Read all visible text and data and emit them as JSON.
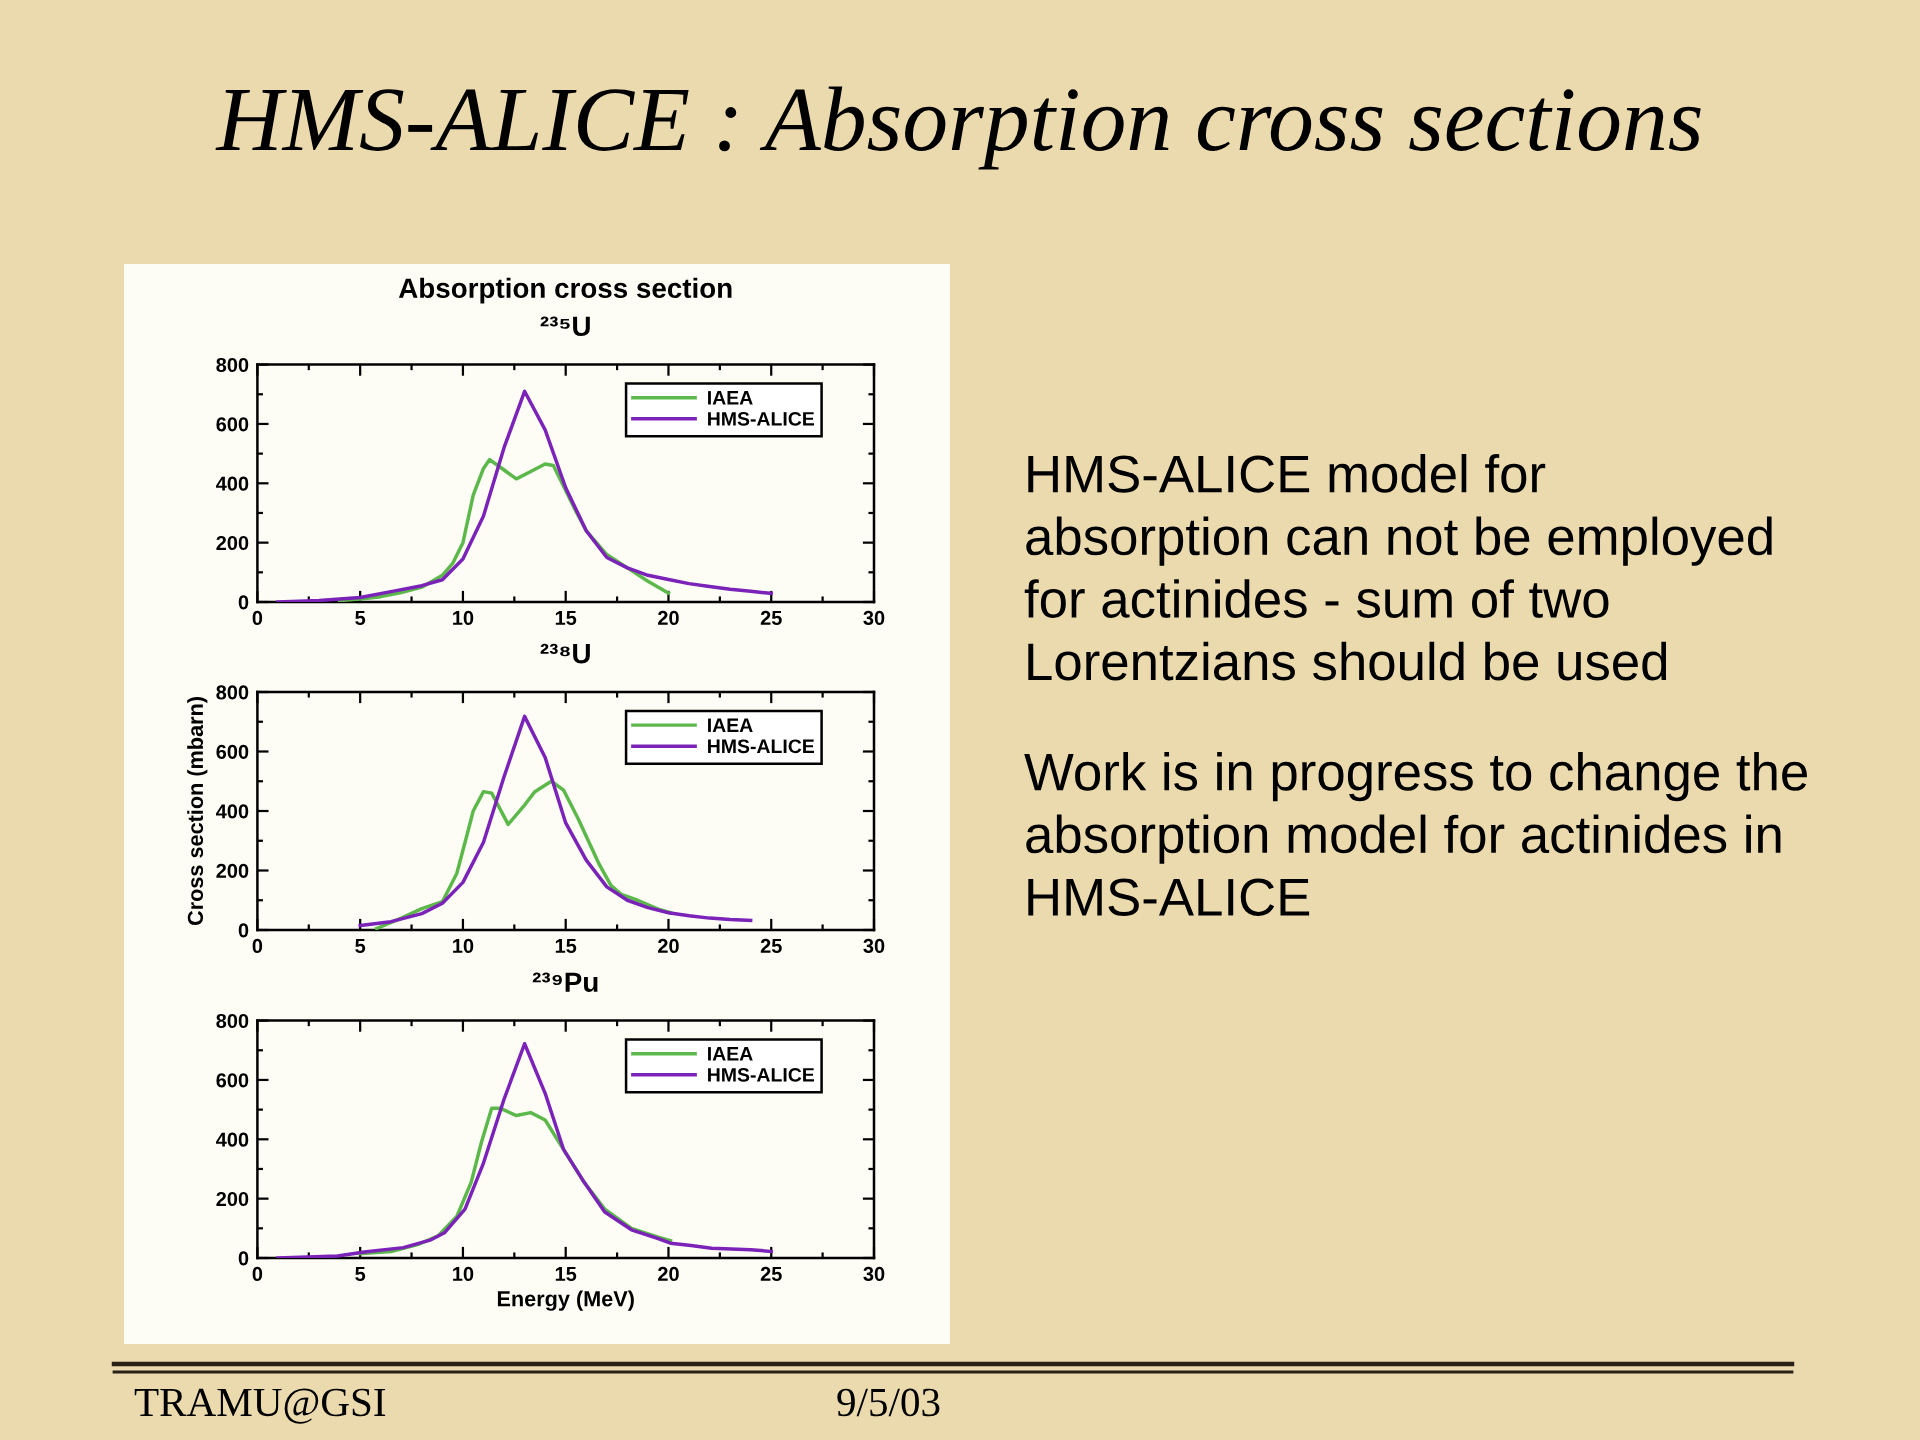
{
  "chart_data": [
    {
      "type": "line",
      "title": "Absorption cross section",
      "subtitle": "²³⁵U",
      "xlim": [
        0,
        30
      ],
      "ylim": [
        0,
        800
      ],
      "xticks": [
        0,
        {
          "value": 2.5,
          "label": null
        },
        5,
        {
          "value": 7.5,
          "label": null
        },
        10,
        {
          "value": 12.5,
          "label": null
        },
        15,
        {
          "value": 17.5,
          "label": null
        },
        20,
        {
          "value": 22.5,
          "label": null
        },
        25,
        {
          "value": 27.5,
          "label": null
        },
        30
      ],
      "yticks": [
        0,
        {
          "value": 100,
          "label": null
        },
        200,
        {
          "value": 300,
          "label": null
        },
        400,
        {
          "value": 500,
          "label": null
        },
        600,
        {
          "value": 700,
          "label": null
        },
        800
      ],
      "legend": "top right",
      "series": [
        {
          "name": "IAEA",
          "color": "#5cb84a",
          "x": [
            4,
            5,
            6,
            7,
            8,
            9,
            9.5,
            10,
            10.5,
            11,
            11.3,
            11.8,
            12.6,
            13.3,
            14,
            14.4,
            14.9,
            15.5,
            16,
            17,
            18,
            19,
            20
          ],
          "values": [
            5,
            10,
            18,
            32,
            50,
            90,
            130,
            200,
            360,
            450,
            480,
            455,
            415,
            440,
            465,
            460,
            390,
            305,
            240,
            160,
            115,
            70,
            30
          ]
        },
        {
          "name": "HMS-ALICE",
          "color": "#7b22b8",
          "x": [
            1,
            3,
            5,
            6.5,
            8,
            9,
            10,
            11,
            12,
            13,
            14,
            15,
            16,
            17,
            18,
            19,
            20,
            21,
            22,
            23,
            24,
            25
          ],
          "values": [
            0,
            5,
            15,
            35,
            55,
            75,
            145,
            290,
            520,
            710,
            580,
            385,
            240,
            150,
            115,
            90,
            76,
            62,
            52,
            43,
            36,
            29
          ]
        }
      ]
    },
    {
      "type": "line",
      "title": "²³⁸U",
      "ylabel": "Cross section (mbarn)",
      "xlim": [
        0,
        30
      ],
      "ylim": [
        0,
        800
      ],
      "xticks": [
        0,
        {
          "value": 2.5,
          "label": null
        },
        5,
        {
          "value": 7.5,
          "label": null
        },
        10,
        {
          "value": 12.5,
          "label": null
        },
        15,
        {
          "value": 17.5,
          "label": null
        },
        20,
        {
          "value": 22.5,
          "label": null
        },
        25,
        {
          "value": 27.5,
          "label": null
        },
        30
      ],
      "yticks": [
        0,
        {
          "value": 100,
          "label": null
        },
        200,
        {
          "value": 300,
          "label": null
        },
        400,
        {
          "value": 500,
          "label": null
        },
        600,
        {
          "value": 700,
          "label": null
        },
        800
      ],
      "legend": "top right",
      "series": [
        {
          "name": "IAEA",
          "color": "#5cb84a",
          "x": [
            5.8,
            7,
            8,
            9,
            9.7,
            10.2,
            10.5,
            11,
            11.4,
            12.2,
            13,
            13.5,
            14.3,
            14.9,
            15.6,
            16.1,
            16.6,
            17.2,
            17.7,
            18.5,
            19.5,
            20.1
          ],
          "values": [
            5,
            40,
            72,
            95,
            190,
            320,
            400,
            465,
            460,
            355,
            420,
            465,
            500,
            470,
            375,
            300,
            225,
            150,
            120,
            100,
            70,
            58
          ]
        },
        {
          "name": "HMS-ALICE",
          "color": "#7b22b8",
          "x": [
            5,
            6.5,
            8,
            9,
            10,
            11,
            12,
            13,
            14,
            15,
            16,
            17,
            18,
            19,
            20,
            21,
            22,
            23,
            24
          ],
          "values": [
            15,
            28,
            55,
            90,
            160,
            295,
            515,
            718,
            580,
            360,
            235,
            145,
            100,
            75,
            58,
            48,
            40,
            35,
            32
          ]
        }
      ]
    },
    {
      "type": "line",
      "title": "²³⁹Pu",
      "xlabel": "Energy (MeV)",
      "xlim": [
        0,
        30
      ],
      "ylim": [
        0,
        800
      ],
      "xticks": [
        0,
        {
          "value": 2.5,
          "label": null
        },
        5,
        {
          "value": 7.5,
          "label": null
        },
        10,
        {
          "value": 12.5,
          "label": null
        },
        15,
        {
          "value": 17.5,
          "label": null
        },
        20,
        {
          "value": 22.5,
          "label": null
        },
        25,
        {
          "value": 27.5,
          "label": null
        },
        30
      ],
      "yticks": [
        0,
        {
          "value": 100,
          "label": null
        },
        200,
        {
          "value": 300,
          "label": null
        },
        400,
        {
          "value": 500,
          "label": null
        },
        600,
        {
          "value": 700,
          "label": null
        },
        800
      ],
      "legend": "top right",
      "series": [
        {
          "name": "IAEA",
          "color": "#5cb84a",
          "x": [
            5,
            6.5,
            7.8,
            8.8,
            9.7,
            10.4,
            10.9,
            11.4,
            11.8,
            12.6,
            13.3,
            14,
            14.9,
            15.9,
            16.9,
            18.2,
            19.5,
            20.1
          ],
          "values": [
            15,
            22,
            45,
            75,
            140,
            255,
            390,
            505,
            505,
            480,
            490,
            465,
            365,
            255,
            165,
            100,
            70,
            58
          ]
        },
        {
          "name": "HMS-ALICE",
          "color": "#7b22b8",
          "x": [
            1,
            3.9,
            5.2,
            7.1,
            8.4,
            9.1,
            10.1,
            11,
            12,
            13,
            14,
            14.9,
            15.9,
            16.9,
            18.2,
            19.5,
            20.1,
            21.1,
            22.1,
            24,
            25
          ],
          "values": [
            0,
            7,
            20,
            35,
            60,
            85,
            165,
            320,
            535,
            722,
            555,
            365,
            255,
            155,
            95,
            65,
            50,
            42,
            33,
            28,
            22
          ]
        }
      ]
    },
    {
      "type": "other",
      "title": "HMS-ALICE : Absorption cross sections",
      "annotations": [
        "HMS-ALICE model for absorption can not be employed for actinides - sum of two Lorentzians should be used",
        "Work is in progress to change the absorption model for actinides in HMS-ALICE",
        "TRAMU@GSI",
        "9/5/03"
      ]
    }
  ]
}
